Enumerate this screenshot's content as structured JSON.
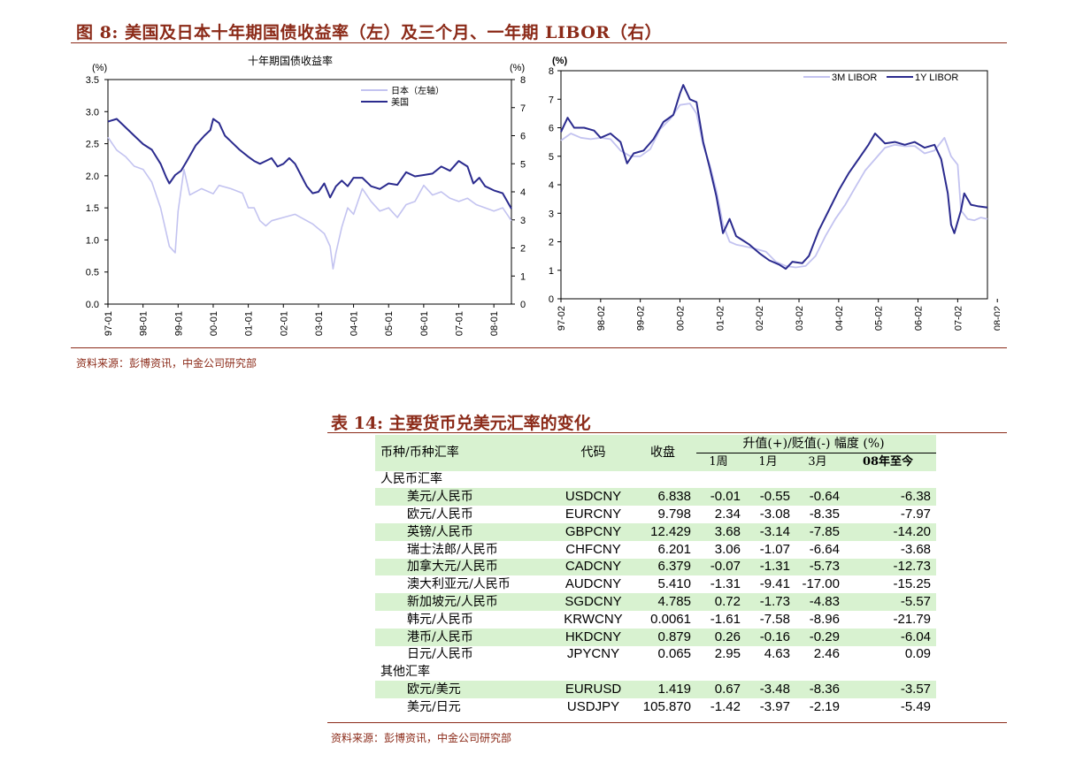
{
  "figure": {
    "title": "图 8:  美国及日本十年期国债收益率（左）及三个月、一年期 LIBOR（右）",
    "source": "资料来源：彭博资讯，中金公司研究部"
  },
  "chart_data": [
    {
      "type": "line",
      "title": "十年期国债收益率",
      "left_axis_label": "(%)",
      "right_axis_label": "(%)",
      "ylim_left": [
        0.0,
        3.5
      ],
      "ylim_right": [
        0,
        8
      ],
      "yticks_left": [
        "3.5",
        "3.0",
        "2.5",
        "2.0",
        "1.5",
        "1.0",
        "0.5",
        "0.0"
      ],
      "yticks_right": [
        "8",
        "7",
        "6",
        "5",
        "4",
        "3",
        "2",
        "1",
        "0"
      ],
      "xticks": [
        "97-01",
        "98-01",
        "99-01",
        "00-01",
        "01-01",
        "02-01",
        "03-01",
        "04-01",
        "05-01",
        "06-01",
        "07-01",
        "08-01"
      ],
      "legend_position": "top-right",
      "series": [
        {
          "name": "日本（左轴）",
          "axis": "left",
          "color": "#c3c3f0",
          "points": [
            [
              0,
              2.6
            ],
            [
              3,
              2.4
            ],
            [
              6,
              2.3
            ],
            [
              9,
              2.15
            ],
            [
              12,
              2.1
            ],
            [
              15,
              1.9
            ],
            [
              18,
              1.5
            ],
            [
              21,
              0.9
            ],
            [
              23,
              0.8
            ],
            [
              24,
              1.45
            ],
            [
              26,
              2.1
            ],
            [
              28,
              1.7
            ],
            [
              32,
              1.8
            ],
            [
              36,
              1.72
            ],
            [
              38,
              1.85
            ],
            [
              42,
              1.8
            ],
            [
              46,
              1.73
            ],
            [
              48,
              1.5
            ],
            [
              50,
              1.5
            ],
            [
              52,
              1.3
            ],
            [
              54,
              1.22
            ],
            [
              56,
              1.3
            ],
            [
              60,
              1.35
            ],
            [
              64,
              1.4
            ],
            [
              68,
              1.3
            ],
            [
              70,
              1.25
            ],
            [
              74,
              1.1
            ],
            [
              76,
              0.9
            ],
            [
              77,
              0.55
            ],
            [
              78,
              0.8
            ],
            [
              80,
              1.2
            ],
            [
              82,
              1.5
            ],
            [
              84,
              1.4
            ],
            [
              87,
              1.8
            ],
            [
              90,
              1.6
            ],
            [
              93,
              1.45
            ],
            [
              96,
              1.5
            ],
            [
              99,
              1.35
            ],
            [
              102,
              1.55
            ],
            [
              105,
              1.6
            ],
            [
              108,
              1.85
            ],
            [
              111,
              1.7
            ],
            [
              114,
              1.75
            ],
            [
              117,
              1.65
            ],
            [
              120,
              1.6
            ],
            [
              123,
              1.65
            ],
            [
              126,
              1.55
            ],
            [
              129,
              1.5
            ],
            [
              132,
              1.45
            ],
            [
              135,
              1.5
            ],
            [
              138,
              1.3
            ]
          ]
        },
        {
          "name": "美国",
          "axis": "right",
          "color": "#2b2b8e",
          "points": [
            [
              0,
              6.5
            ],
            [
              3,
              6.6
            ],
            [
              6,
              6.3
            ],
            [
              9,
              6.0
            ],
            [
              12,
              5.7
            ],
            [
              15,
              5.5
            ],
            [
              18,
              5.0
            ],
            [
              20,
              4.5
            ],
            [
              21,
              4.3
            ],
            [
              23,
              4.6
            ],
            [
              25,
              4.75
            ],
            [
              27,
              5.1
            ],
            [
              30,
              5.65
            ],
            [
              33,
              6.0
            ],
            [
              35,
              6.2
            ],
            [
              36,
              6.6
            ],
            [
              38,
              6.45
            ],
            [
              40,
              6.0
            ],
            [
              42,
              5.8
            ],
            [
              45,
              5.5
            ],
            [
              48,
              5.25
            ],
            [
              50,
              5.1
            ],
            [
              52,
              5.0
            ],
            [
              54,
              5.1
            ],
            [
              56,
              5.2
            ],
            [
              58,
              4.9
            ],
            [
              60,
              5.0
            ],
            [
              62,
              5.2
            ],
            [
              64,
              5.0
            ],
            [
              66,
              4.6
            ],
            [
              68,
              4.2
            ],
            [
              70,
              3.95
            ],
            [
              72,
              4.0
            ],
            [
              74,
              4.3
            ],
            [
              76,
              3.8
            ],
            [
              78,
              4.2
            ],
            [
              80,
              4.4
            ],
            [
              82,
              4.2
            ],
            [
              84,
              4.5
            ],
            [
              87,
              4.5
            ],
            [
              90,
              4.2
            ],
            [
              93,
              4.1
            ],
            [
              96,
              4.3
            ],
            [
              99,
              4.25
            ],
            [
              102,
              4.7
            ],
            [
              105,
              4.55
            ],
            [
              108,
              4.6
            ],
            [
              111,
              4.65
            ],
            [
              114,
              4.9
            ],
            [
              117,
              4.75
            ],
            [
              120,
              5.1
            ],
            [
              123,
              4.9
            ],
            [
              125,
              4.3
            ],
            [
              127,
              4.5
            ],
            [
              129,
              4.2
            ],
            [
              132,
              4.05
            ],
            [
              135,
              3.95
            ],
            [
              138,
              3.4
            ]
          ]
        }
      ]
    },
    {
      "type": "line",
      "axis_label": "(%)",
      "ylim": [
        0,
        8
      ],
      "yticks": [
        "8",
        "7",
        "6",
        "5",
        "4",
        "3",
        "2",
        "1",
        "0"
      ],
      "xticks": [
        "97-02",
        "98-02",
        "99-02",
        "00-02",
        "01-02",
        "02-02",
        "03-02",
        "04-02",
        "05-02",
        "06-02",
        "07-02",
        "08-02"
      ],
      "legend_position": "top-right",
      "series": [
        {
          "name": "3M LIBOR",
          "color": "#c3c3f0",
          "points": [
            [
              0,
              5.55
            ],
            [
              3,
              5.8
            ],
            [
              6,
              5.65
            ],
            [
              9,
              5.6
            ],
            [
              12,
              5.65
            ],
            [
              15,
              5.6
            ],
            [
              18,
              5.2
            ],
            [
              21,
              5.0
            ],
            [
              24,
              5.0
            ],
            [
              27,
              5.25
            ],
            [
              30,
              5.95
            ],
            [
              33,
              6.3
            ],
            [
              36,
              6.8
            ],
            [
              39,
              6.85
            ],
            [
              41,
              6.5
            ],
            [
              43,
              5.4
            ],
            [
              45,
              4.7
            ],
            [
              47,
              3.8
            ],
            [
              49,
              2.6
            ],
            [
              51,
              2.0
            ],
            [
              53,
              1.9
            ],
            [
              55,
              1.85
            ],
            [
              57,
              1.8
            ],
            [
              59,
              1.75
            ],
            [
              62,
              1.65
            ],
            [
              65,
              1.3
            ],
            [
              68,
              1.15
            ],
            [
              71,
              1.1
            ],
            [
              74,
              1.15
            ],
            [
              77,
              1.5
            ],
            [
              80,
              2.2
            ],
            [
              83,
              2.8
            ],
            [
              86,
              3.3
            ],
            [
              89,
              3.9
            ],
            [
              92,
              4.5
            ],
            [
              95,
              4.9
            ],
            [
              98,
              5.3
            ],
            [
              101,
              5.4
            ],
            [
              104,
              5.35
            ],
            [
              107,
              5.36
            ],
            [
              110,
              5.1
            ],
            [
              113,
              5.2
            ],
            [
              116,
              5.65
            ],
            [
              118,
              5.0
            ],
            [
              120,
              4.7
            ],
            [
              121,
              3.1
            ],
            [
              123,
              2.8
            ],
            [
              125,
              2.75
            ],
            [
              127,
              2.85
            ],
            [
              129,
              2.8
            ]
          ]
        },
        {
          "name": "1Y LIBOR",
          "color": "#2b2b8e",
          "points": [
            [
              0,
              5.85
            ],
            [
              2,
              6.35
            ],
            [
              4,
              6.0
            ],
            [
              7,
              6.0
            ],
            [
              10,
              5.9
            ],
            [
              12,
              5.65
            ],
            [
              15,
              5.8
            ],
            [
              18,
              5.5
            ],
            [
              20,
              4.75
            ],
            [
              22,
              5.1
            ],
            [
              25,
              5.2
            ],
            [
              28,
              5.6
            ],
            [
              31,
              6.2
            ],
            [
              34,
              6.45
            ],
            [
              36,
              7.2
            ],
            [
              37,
              7.5
            ],
            [
              39,
              7.0
            ],
            [
              41,
              6.9
            ],
            [
              43,
              5.5
            ],
            [
              45,
              4.6
            ],
            [
              47,
              3.6
            ],
            [
              49,
              2.3
            ],
            [
              51,
              2.8
            ],
            [
              53,
              2.2
            ],
            [
              55,
              2.05
            ],
            [
              57,
              1.9
            ],
            [
              60,
              1.6
            ],
            [
              63,
              1.35
            ],
            [
              66,
              1.2
            ],
            [
              68,
              1.05
            ],
            [
              70,
              1.3
            ],
            [
              73,
              1.25
            ],
            [
              75,
              1.5
            ],
            [
              78,
              2.4
            ],
            [
              81,
              3.1
            ],
            [
              84,
              3.8
            ],
            [
              87,
              4.4
            ],
            [
              90,
              4.9
            ],
            [
              93,
              5.4
            ],
            [
              95,
              5.8
            ],
            [
              98,
              5.45
            ],
            [
              101,
              5.5
            ],
            [
              104,
              5.4
            ],
            [
              107,
              5.5
            ],
            [
              110,
              5.3
            ],
            [
              113,
              5.4
            ],
            [
              115,
              4.9
            ],
            [
              117,
              3.7
            ],
            [
              118,
              2.6
            ],
            [
              119,
              2.3
            ],
            [
              121,
              3.1
            ],
            [
              122,
              3.7
            ],
            [
              124,
              3.3
            ],
            [
              126,
              3.25
            ],
            [
              129,
              3.2
            ]
          ]
        }
      ]
    }
  ],
  "table": {
    "title": "表 14:  主要货币兑美元汇率的变化",
    "headers": {
      "pair": "币种/币种汇率",
      "code": "代码",
      "close": "收盘",
      "change_group": "升值(+)/贬值(-)   幅度 (%)",
      "w1": "1周",
      "m1": "1月",
      "m3": "3月",
      "ytd": "08年至今"
    },
    "group_rmb": "人民币汇率",
    "rows_rmb": [
      {
        "name": "美元/人民币",
        "code": "USDCNY",
        "close": "6.838",
        "w1": "-0.01",
        "m1": "-0.55",
        "m3": "-0.64",
        "ytd": "-6.38"
      },
      {
        "name": "欧元/人民币",
        "code": "EURCNY",
        "close": "9.798",
        "w1": "2.34",
        "m1": "-3.08",
        "m3": "-8.35",
        "ytd": "-7.97"
      },
      {
        "name": "英镑/人民币",
        "code": "GBPCNY",
        "close": "12.429",
        "w1": "3.68",
        "m1": "-3.14",
        "m3": "-7.85",
        "ytd": "-14.20"
      },
      {
        "name": "瑞士法郎/人民币",
        "code": "CHFCNY",
        "close": "6.201",
        "w1": "3.06",
        "m1": "-1.07",
        "m3": "-6.64",
        "ytd": "-3.68"
      },
      {
        "name": "加拿大元/人民币",
        "code": "CADCNY",
        "close": "6.379",
        "w1": "-0.07",
        "m1": "-1.31",
        "m3": "-5.73",
        "ytd": "-12.73"
      },
      {
        "name": "澳大利亚元/人民币",
        "code": "AUDCNY",
        "close": "5.410",
        "w1": "-1.31",
        "m1": "-9.41",
        "m3": "-17.00",
        "ytd": "-15.25"
      },
      {
        "name": "新加坡元/人民币",
        "code": "SGDCNY",
        "close": "4.785",
        "w1": "0.72",
        "m1": "-1.73",
        "m3": "-4.83",
        "ytd": "-5.57"
      },
      {
        "name": "韩元/人民币",
        "code": "KRWCNY",
        "close": "0.0061",
        "w1": "-1.61",
        "m1": "-7.58",
        "m3": "-8.96",
        "ytd": "-21.79"
      },
      {
        "name": "港币/人民币",
        "code": "HKDCNY",
        "close": "0.879",
        "w1": "0.26",
        "m1": "-0.16",
        "m3": "-0.29",
        "ytd": "-6.04"
      },
      {
        "name": "日元/人民币",
        "code": "JPYCNY",
        "close": "0.065",
        "w1": "2.95",
        "m1": "4.63",
        "m3": "2.46",
        "ytd": "0.09"
      }
    ],
    "group_other": "其他汇率",
    "rows_other": [
      {
        "name": "欧元/美元",
        "code": "EURUSD",
        "close": "1.419",
        "w1": "0.67",
        "m1": "-3.48",
        "m3": "-8.36",
        "ytd": "-3.57"
      },
      {
        "name": "美元/日元",
        "code": "USDJPY",
        "close": "105.870",
        "w1": "-1.42",
        "m1": "-3.97",
        "m3": "-2.19",
        "ytd": "-5.49"
      }
    ],
    "source": "资料来源：彭博资讯，中金公司研究部",
    "row_green": "#d8f2d0"
  }
}
